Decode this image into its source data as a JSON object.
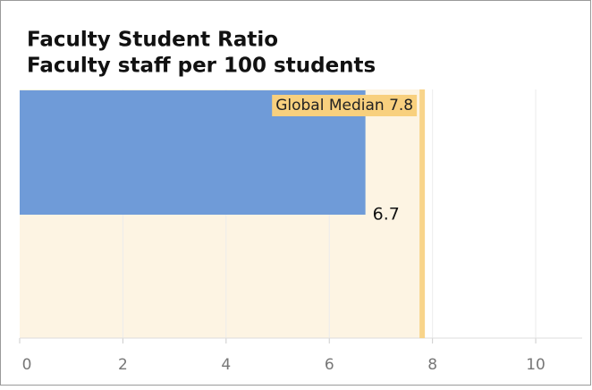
{
  "chart_data": {
    "type": "bar",
    "orientation": "horizontal",
    "title": "Faculty Student Ratio",
    "subtitle": "Faculty staff per 100 students",
    "categories": [
      null
    ],
    "values": [
      6.7
    ],
    "color": "#6f9bd8",
    "median": {
      "value": 7.8,
      "label": "Global Median 7.8",
      "color": "#f8d48a",
      "shade": "#fdf4e3"
    },
    "xlim": [
      0,
      10.9
    ],
    "xticks": [
      0,
      2,
      4,
      6,
      8,
      10
    ],
    "grid": true
  }
}
